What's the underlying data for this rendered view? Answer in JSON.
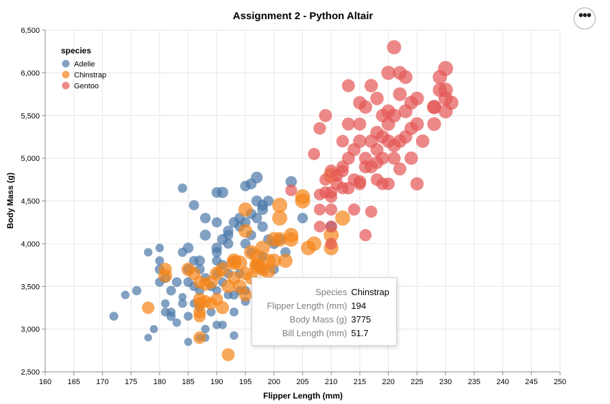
{
  "menu": {
    "icon": "more-horizontal-icon",
    "label": "•••"
  },
  "chart_data": {
    "type": "scatter",
    "title": "Assignment 2 - Python Altair",
    "xlabel": "Flipper Length (mm)",
    "ylabel": "Body Mass (g)",
    "xlim": [
      160,
      250
    ],
    "ylim": [
      2500,
      6500
    ],
    "xticks": [
      160,
      165,
      170,
      175,
      180,
      185,
      190,
      195,
      200,
      205,
      210,
      215,
      220,
      225,
      230,
      235,
      240,
      245,
      250
    ],
    "yticks": [
      2500,
      3000,
      3500,
      4000,
      4500,
      5000,
      5500,
      6000,
      6500
    ],
    "ytick_labels": [
      "2,500",
      "3,000",
      "3,500",
      "4,000",
      "4,500",
      "5,000",
      "5,500",
      "6,000",
      "6,500"
    ],
    "grid": true,
    "size_encoding": "Bill Length (mm)",
    "legend": {
      "title": "species",
      "position": "top-left",
      "entries": [
        {
          "name": "Adelie",
          "color": "#4c78a8"
        },
        {
          "name": "Chinstrap",
          "color": "#f58518"
        },
        {
          "name": "Gentoo",
          "color": "#e45756"
        }
      ]
    },
    "series": [
      {
        "name": "Adelie",
        "color": "#4c78a8",
        "points": [
          [
            172,
            3150,
            37
          ],
          [
            174,
            3400,
            36
          ],
          [
            176,
            3450,
            38
          ],
          [
            178,
            3900,
            36
          ],
          [
            178,
            2900,
            34
          ],
          [
            179,
            3000,
            35
          ],
          [
            180,
            3550,
            38
          ],
          [
            180,
            3700,
            39
          ],
          [
            180,
            3800,
            37
          ],
          [
            180,
            3950,
            36
          ],
          [
            181,
            3600,
            40
          ],
          [
            181,
            3300,
            36
          ],
          [
            181,
            3200,
            37
          ],
          [
            182,
            3450,
            39
          ],
          [
            182,
            3200,
            37
          ],
          [
            182,
            3150,
            38
          ],
          [
            183,
            3550,
            39
          ],
          [
            183,
            3075,
            36
          ],
          [
            184,
            3900,
            38
          ],
          [
            184,
            3375,
            35
          ],
          [
            184,
            3300,
            37
          ],
          [
            184,
            4650,
            38
          ],
          [
            185,
            3700,
            40
          ],
          [
            185,
            3950,
            41
          ],
          [
            185,
            3550,
            39
          ],
          [
            185,
            3150,
            37
          ],
          [
            185,
            2850,
            35
          ],
          [
            186,
            3800,
            39
          ],
          [
            186,
            3500,
            38
          ],
          [
            186,
            4450,
            40
          ],
          [
            186,
            3300,
            36
          ],
          [
            187,
            3800,
            41
          ],
          [
            187,
            3700,
            40
          ],
          [
            187,
            3450,
            38
          ],
          [
            187,
            3250,
            37
          ],
          [
            187,
            2900,
            34
          ],
          [
            188,
            4300,
            41
          ],
          [
            188,
            4100,
            42
          ],
          [
            188,
            3600,
            39
          ],
          [
            188,
            3000,
            36
          ],
          [
            188,
            2900,
            35
          ],
          [
            189,
            3500,
            38
          ],
          [
            189,
            3200,
            37
          ],
          [
            190,
            3950,
            41
          ],
          [
            190,
            3900,
            40
          ],
          [
            190,
            3800,
            39
          ],
          [
            190,
            3650,
            38
          ],
          [
            190,
            3450,
            37
          ],
          [
            190,
            3050,
            36
          ],
          [
            190,
            4250,
            40
          ],
          [
            190,
            4600,
            41
          ],
          [
            191,
            4600,
            43
          ],
          [
            191,
            4050,
            42
          ],
          [
            191,
            3750,
            40
          ],
          [
            191,
            3550,
            38
          ],
          [
            191,
            3050,
            36
          ],
          [
            192,
            4150,
            41
          ],
          [
            192,
            4100,
            40
          ],
          [
            192,
            4000,
            40
          ],
          [
            192,
            3650,
            39
          ],
          [
            192,
            3400,
            37
          ],
          [
            193,
            4250,
            41
          ],
          [
            193,
            3800,
            40
          ],
          [
            193,
            3400,
            38
          ],
          [
            193,
            3200,
            37
          ],
          [
            193,
            2925,
            36
          ],
          [
            194,
            4200,
            40
          ],
          [
            194,
            3650,
            39
          ],
          [
            194,
            3450,
            37
          ],
          [
            194,
            4300,
            41
          ],
          [
            195,
            4675,
            41
          ],
          [
            195,
            4250,
            40
          ],
          [
            195,
            4000,
            40
          ],
          [
            195,
            3450,
            38
          ],
          [
            195,
            3325,
            37
          ],
          [
            196,
            4700,
            42
          ],
          [
            196,
            4350,
            41
          ],
          [
            196,
            4100,
            40
          ],
          [
            196,
            3900,
            39
          ],
          [
            197,
            4775,
            44
          ],
          [
            197,
            4500,
            42
          ],
          [
            197,
            4300,
            41
          ],
          [
            197,
            3750,
            40
          ],
          [
            198,
            4450,
            42
          ],
          [
            198,
            4400,
            42
          ],
          [
            198,
            4200,
            41
          ],
          [
            198,
            3850,
            39
          ],
          [
            198,
            3700,
            39
          ],
          [
            199,
            4500,
            41
          ],
          [
            199,
            4050,
            40
          ],
          [
            200,
            4000,
            41
          ],
          [
            200,
            3700,
            39
          ],
          [
            201,
            4050,
            41
          ],
          [
            202,
            3900,
            40
          ],
          [
            203,
            4725,
            43
          ],
          [
            205,
            4300,
            41
          ],
          [
            210,
            4200,
            42
          ]
        ]
      },
      {
        "name": "Chinstrap",
        "color": "#f58518",
        "points": [
          [
            178,
            3250,
            46
          ],
          [
            181,
            3700,
            47
          ],
          [
            181,
            3625,
            49
          ],
          [
            185,
            3700,
            48
          ],
          [
            186,
            3650,
            47
          ],
          [
            187,
            3300,
            46
          ],
          [
            187,
            3150,
            45
          ],
          [
            187,
            3550,
            47
          ],
          [
            187,
            2900,
            46
          ],
          [
            187,
            3200,
            46
          ],
          [
            187,
            3350,
            47
          ],
          [
            188,
            3525,
            47
          ],
          [
            188,
            3325,
            46
          ],
          [
            189,
            3550,
            48
          ],
          [
            189,
            3300,
            46
          ],
          [
            190,
            3650,
            49
          ],
          [
            190,
            3350,
            46
          ],
          [
            191,
            3700,
            50
          ],
          [
            191,
            3250,
            47
          ],
          [
            192,
            3500,
            48
          ],
          [
            192,
            2700,
            47
          ],
          [
            193,
            3775,
            50
          ],
          [
            193,
            3800,
            51
          ],
          [
            193,
            3600,
            48
          ],
          [
            194,
            3775,
            51.7
          ],
          [
            194,
            3500,
            49
          ],
          [
            195,
            4400,
            50
          ],
          [
            195,
            4150,
            49
          ],
          [
            195,
            3650,
            48
          ],
          [
            195,
            3400,
            47
          ],
          [
            196,
            3900,
            50
          ],
          [
            196,
            3600,
            48
          ],
          [
            197,
            3750,
            51
          ],
          [
            197,
            3725,
            50
          ],
          [
            197,
            3850,
            50
          ],
          [
            198,
            3950,
            51
          ],
          [
            198,
            3700,
            50
          ],
          [
            199,
            3675,
            49
          ],
          [
            199,
            3800,
            50
          ],
          [
            200,
            3800,
            50
          ],
          [
            200,
            4050,
            51
          ],
          [
            201,
            4300,
            52
          ],
          [
            201,
            4450,
            52
          ],
          [
            201,
            4050,
            51
          ],
          [
            202,
            3800,
            50
          ],
          [
            203,
            4050,
            51
          ],
          [
            203,
            4100,
            51
          ],
          [
            205,
            4550,
            52
          ],
          [
            205,
            4500,
            52
          ],
          [
            206,
            3950,
            51
          ],
          [
            207,
            4000,
            51
          ],
          [
            210,
            4800,
            53
          ],
          [
            210,
            4100,
            52
          ],
          [
            210,
            3950,
            51
          ],
          [
            212,
            4300,
            52
          ]
        ]
      },
      {
        "name": "Gentoo",
        "color": "#e45756",
        "points": [
          [
            203,
            4625,
            44
          ],
          [
            207,
            5050,
            45
          ],
          [
            208,
            4575,
            44
          ],
          [
            208,
            4400,
            44
          ],
          [
            208,
            4200,
            44
          ],
          [
            208,
            5350,
            46
          ],
          [
            209,
            4600,
            45
          ],
          [
            209,
            4750,
            45
          ],
          [
            209,
            5500,
            47
          ],
          [
            210,
            4850,
            47
          ],
          [
            210,
            4600,
            45
          ],
          [
            210,
            4550,
            45
          ],
          [
            210,
            4400,
            45
          ],
          [
            210,
            4200,
            45
          ],
          [
            210,
            4000,
            44
          ],
          [
            211,
            4800,
            46
          ],
          [
            211,
            4700,
            46
          ],
          [
            212,
            5200,
            46
          ],
          [
            212,
            4900,
            46
          ],
          [
            212,
            4850,
            45
          ],
          [
            212,
            4650,
            45
          ],
          [
            213,
            5850,
            47
          ],
          [
            213,
            5400,
            47
          ],
          [
            213,
            5000,
            47
          ],
          [
            213,
            4650,
            46
          ],
          [
            214,
            5100,
            47
          ],
          [
            214,
            4750,
            46
          ],
          [
            214,
            4400,
            45
          ],
          [
            215,
            5650,
            48
          ],
          [
            215,
            5400,
            47
          ],
          [
            215,
            5200,
            48
          ],
          [
            215,
            4700,
            46
          ],
          [
            215,
            4725,
            47
          ],
          [
            216,
            5600,
            48
          ],
          [
            216,
            5000,
            47
          ],
          [
            216,
            4900,
            47
          ],
          [
            216,
            4100,
            45
          ],
          [
            217,
            5850,
            48
          ],
          [
            217,
            5200,
            48
          ],
          [
            217,
            4900,
            47
          ],
          [
            217,
            4375,
            45
          ],
          [
            218,
            5700,
            48
          ],
          [
            218,
            5300,
            48
          ],
          [
            218,
            5100,
            47
          ],
          [
            218,
            4950,
            47
          ],
          [
            218,
            4750,
            46
          ],
          [
            219,
            5500,
            48
          ],
          [
            219,
            5250,
            48
          ],
          [
            219,
            5000,
            47
          ],
          [
            219,
            4700,
            46
          ],
          [
            220,
            6000,
            50
          ],
          [
            220,
            5550,
            49
          ],
          [
            220,
            5400,
            48
          ],
          [
            220,
            5200,
            48
          ],
          [
            220,
            4700,
            46
          ],
          [
            221,
            6300,
            50
          ],
          [
            221,
            5500,
            49
          ],
          [
            221,
            5150,
            48
          ],
          [
            221,
            5000,
            47
          ],
          [
            222,
            6000,
            49
          ],
          [
            222,
            5750,
            49
          ],
          [
            222,
            5200,
            48
          ],
          [
            222,
            4875,
            47
          ],
          [
            223,
            5950,
            49
          ],
          [
            223,
            5550,
            49
          ],
          [
            223,
            5250,
            48
          ],
          [
            224,
            5650,
            49
          ],
          [
            224,
            5350,
            48
          ],
          [
            224,
            5000,
            48
          ],
          [
            225,
            5700,
            49
          ],
          [
            225,
            5400,
            49
          ],
          [
            225,
            4700,
            48
          ],
          [
            226,
            5200,
            48
          ],
          [
            228,
            5600,
            50
          ],
          [
            228,
            5400,
            49
          ],
          [
            228,
            5600,
            49
          ],
          [
            229,
            5800,
            50
          ],
          [
            229,
            5950,
            50
          ],
          [
            230,
            6050,
            52
          ],
          [
            230,
            5800,
            51
          ],
          [
            230,
            5700,
            50
          ],
          [
            230,
            5550,
            50
          ],
          [
            231,
            5650,
            50
          ]
        ]
      }
    ]
  },
  "tooltip": {
    "rows": [
      {
        "key": "Species",
        "value": "Chinstrap"
      },
      {
        "key": "Flipper Length (mm)",
        "value": "194"
      },
      {
        "key": "Body Mass (g)",
        "value": "3775"
      },
      {
        "key": "Bill Length (mm)",
        "value": "51.7"
      }
    ]
  }
}
